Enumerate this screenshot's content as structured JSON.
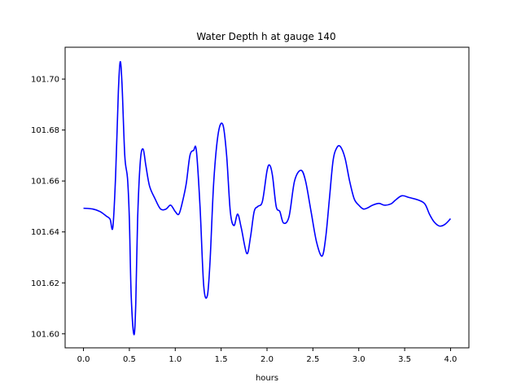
{
  "chart_data": {
    "type": "line",
    "title": "Water Depth h at gauge 140",
    "xlabel": "hours",
    "ylabel": "",
    "xlim": [
      -0.2,
      4.2
    ],
    "ylim": [
      101.5945,
      101.7125
    ],
    "xticks": [
      0.0,
      0.5,
      1.0,
      1.5,
      2.0,
      2.5,
      3.0,
      3.5,
      4.0
    ],
    "xtick_labels": [
      "0.0",
      "0.5",
      "1.0",
      "1.5",
      "2.0",
      "2.5",
      "3.0",
      "3.5",
      "4.0"
    ],
    "yticks": [
      101.6,
      101.62,
      101.64,
      101.66,
      101.68,
      101.7
    ],
    "ytick_labels": [
      "101.60",
      "101.62",
      "101.64",
      "101.66",
      "101.68",
      "101.70"
    ],
    "grid": false,
    "legend": "none",
    "series": [
      {
        "color": "#0000ff",
        "x": [
          0.0,
          0.1,
          0.18,
          0.25,
          0.29,
          0.32,
          0.35,
          0.38,
          0.4,
          0.42,
          0.45,
          0.48,
          0.5,
          0.52,
          0.55,
          0.57,
          0.59,
          0.62,
          0.65,
          0.68,
          0.72,
          0.78,
          0.84,
          0.9,
          0.95,
          1.0,
          1.04,
          1.08,
          1.12,
          1.16,
          1.2,
          1.23,
          1.27,
          1.31,
          1.35,
          1.38,
          1.42,
          1.47,
          1.52,
          1.56,
          1.6,
          1.64,
          1.68,
          1.72,
          1.78,
          1.82,
          1.86,
          1.9,
          1.95,
          2.0,
          2.03,
          2.06,
          2.1,
          2.14,
          2.18,
          2.24,
          2.3,
          2.37,
          2.42,
          2.48,
          2.54,
          2.6,
          2.64,
          2.68,
          2.72,
          2.76,
          2.8,
          2.85,
          2.9,
          2.95,
          3.0,
          3.05,
          3.1,
          3.15,
          3.22,
          3.28,
          3.35,
          3.4,
          3.47,
          3.55,
          3.65,
          3.72,
          3.77,
          3.82,
          3.88,
          3.94,
          4.0
        ],
        "y": [
          101.6493,
          101.649,
          101.648,
          101.6462,
          101.645,
          101.6418,
          101.662,
          101.695,
          101.7068,
          101.698,
          101.67,
          101.661,
          101.645,
          101.615,
          101.5997,
          101.612,
          101.645,
          101.668,
          101.6725,
          101.666,
          101.658,
          101.653,
          101.649,
          101.649,
          101.6505,
          101.648,
          101.647,
          101.652,
          101.659,
          101.67,
          101.672,
          101.672,
          101.65,
          101.619,
          101.615,
          101.629,
          101.66,
          101.679,
          101.682,
          101.67,
          101.648,
          101.6425,
          101.647,
          101.6415,
          101.6315,
          101.638,
          101.648,
          101.65,
          101.652,
          101.664,
          101.6662,
          101.662,
          101.65,
          101.648,
          101.6435,
          101.646,
          101.66,
          101.6642,
          101.66,
          101.648,
          101.636,
          101.6305,
          101.638,
          101.653,
          101.668,
          101.673,
          101.6735,
          101.669,
          101.66,
          101.653,
          101.6505,
          101.649,
          101.6495,
          101.6505,
          101.6512,
          101.6505,
          101.651,
          101.6525,
          101.6542,
          101.6535,
          101.6525,
          101.651,
          101.647,
          101.644,
          101.6423,
          101.643,
          101.6452
        ]
      }
    ]
  }
}
